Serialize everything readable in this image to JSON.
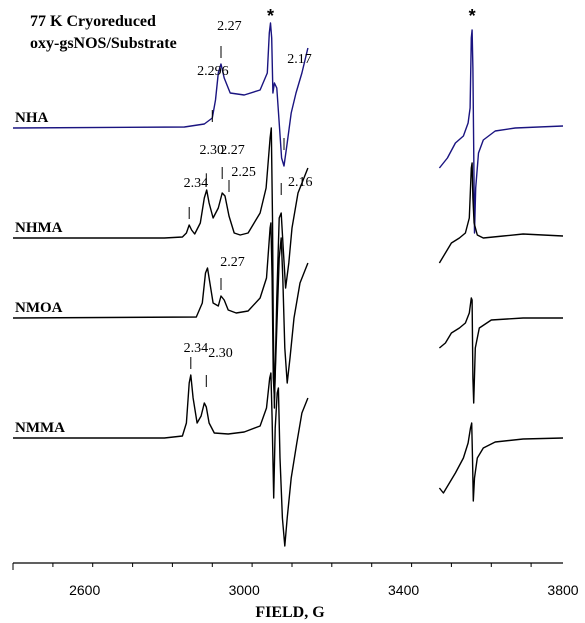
{
  "chart_data": {
    "type": "line",
    "title_lines": [
      "77 K Cryoreduced",
      "oxy-gsNOS/Substrate"
    ],
    "xlabel": "FIELD, G",
    "ylabel": "",
    "xlim": [
      2420,
      3800
    ],
    "xticks": [
      2600,
      3000,
      3400,
      3800
    ],
    "grid": false,
    "axis_break": [
      3160,
      3490
    ],
    "star_markers": [
      3066,
      3572
    ],
    "colors": {
      "blue": "#1a1480",
      "black": "#000000"
    },
    "series": [
      {
        "name": "NHA",
        "color": "#1a1480",
        "baseline": 128,
        "low_points": [
          [
            2420,
            0
          ],
          [
            2850,
            1
          ],
          [
            2900,
            4
          ],
          [
            2920,
            10
          ],
          [
            2928,
            28
          ],
          [
            2935,
            55
          ],
          [
            2942,
            64
          ],
          [
            2950,
            50
          ],
          [
            2965,
            35
          ],
          [
            3000,
            33
          ],
          [
            3040,
            38
          ],
          [
            3058,
            55
          ],
          [
            3063,
            95
          ],
          [
            3066,
            105
          ],
          [
            3069,
            90
          ],
          [
            3072,
            35
          ],
          [
            3076,
            45
          ],
          [
            3082,
            40
          ],
          [
            3088,
            5
          ],
          [
            3094,
            -30
          ],
          [
            3100,
            -38
          ],
          [
            3108,
            -15
          ],
          [
            3118,
            15
          ],
          [
            3130,
            35
          ],
          [
            3145,
            55
          ],
          [
            3160,
            80
          ]
        ],
        "high_points": [
          [
            3490,
            -40
          ],
          [
            3510,
            -30
          ],
          [
            3530,
            -15
          ],
          [
            3550,
            -8
          ],
          [
            3562,
            5
          ],
          [
            3567,
            20
          ],
          [
            3570,
            90
          ],
          [
            3572,
            98
          ],
          [
            3574,
            60
          ],
          [
            3576,
            -20
          ],
          [
            3578,
            -105
          ],
          [
            3581,
            -60
          ],
          [
            3588,
            -25
          ],
          [
            3600,
            -12
          ],
          [
            3630,
            -3
          ],
          [
            3680,
            0
          ],
          [
            3800,
            2
          ]
        ]
      },
      {
        "name": "NHMA",
        "color": "#000000",
        "baseline": 238,
        "low_points": [
          [
            2420,
            0
          ],
          [
            2800,
            0
          ],
          [
            2845,
            1
          ],
          [
            2855,
            5
          ],
          [
            2862,
            13
          ],
          [
            2868,
            8
          ],
          [
            2876,
            4
          ],
          [
            2890,
            15
          ],
          [
            2900,
            40
          ],
          [
            2906,
            48
          ],
          [
            2912,
            35
          ],
          [
            2922,
            20
          ],
          [
            2935,
            30
          ],
          [
            2945,
            45
          ],
          [
            2952,
            42
          ],
          [
            2962,
            22
          ],
          [
            2975,
            5
          ],
          [
            2990,
            3
          ],
          [
            3010,
            5
          ],
          [
            3040,
            25
          ],
          [
            3055,
            50
          ],
          [
            3065,
            100
          ],
          [
            3068,
            110
          ],
          [
            3071,
            20
          ],
          [
            3073,
            -90
          ],
          [
            3076,
            -170
          ],
          [
            3082,
            -60
          ],
          [
            3088,
            20
          ],
          [
            3093,
            25
          ],
          [
            3098,
            -10
          ],
          [
            3104,
            -50
          ],
          [
            3112,
            -25
          ],
          [
            3120,
            10
          ],
          [
            3135,
            45
          ],
          [
            3160,
            70
          ]
        ],
        "high_points": [
          [
            3490,
            -25
          ],
          [
            3505,
            -15
          ],
          [
            3520,
            -5
          ],
          [
            3540,
            0
          ],
          [
            3555,
            5
          ],
          [
            3565,
            20
          ],
          [
            3570,
            70
          ],
          [
            3572,
            75
          ],
          [
            3574,
            40
          ],
          [
            3577,
            15
          ],
          [
            3585,
            3
          ],
          [
            3600,
            0
          ],
          [
            3650,
            2
          ],
          [
            3700,
            4
          ],
          [
            3800,
            2
          ]
        ]
      },
      {
        "name": "NMOA",
        "color": "#000000",
        "baseline": 318,
        "low_points": [
          [
            2420,
            0
          ],
          [
            2880,
            1
          ],
          [
            2895,
            15
          ],
          [
            2903,
            45
          ],
          [
            2908,
            50
          ],
          [
            2914,
            35
          ],
          [
            2922,
            15
          ],
          [
            2935,
            12
          ],
          [
            2942,
            22
          ],
          [
            2950,
            18
          ],
          [
            2960,
            8
          ],
          [
            2980,
            5
          ],
          [
            3010,
            7
          ],
          [
            3040,
            20
          ],
          [
            3056,
            40
          ],
          [
            3065,
            90
          ],
          [
            3067,
            95
          ],
          [
            3070,
            40
          ],
          [
            3073,
            -60
          ],
          [
            3076,
            -80
          ],
          [
            3082,
            -10
          ],
          [
            3088,
            60
          ],
          [
            3093,
            80
          ],
          [
            3097,
            40
          ],
          [
            3102,
            -30
          ],
          [
            3108,
            -65
          ],
          [
            3115,
            -40
          ],
          [
            3125,
            0
          ],
          [
            3140,
            35
          ],
          [
            3160,
            55
          ]
        ],
        "high_points": [
          [
            3490,
            -30
          ],
          [
            3505,
            -25
          ],
          [
            3520,
            -15
          ],
          [
            3540,
            -10
          ],
          [
            3555,
            -5
          ],
          [
            3565,
            5
          ],
          [
            3570,
            20
          ],
          [
            3572,
            18
          ],
          [
            3574,
            -60
          ],
          [
            3576,
            -85
          ],
          [
            3580,
            -30
          ],
          [
            3590,
            -10
          ],
          [
            3620,
            -2
          ],
          [
            3700,
            0
          ],
          [
            3800,
            0
          ]
        ]
      },
      {
        "name": "NMMA",
        "color": "#000000",
        "baseline": 438,
        "low_points": [
          [
            2420,
            0
          ],
          [
            2800,
            0
          ],
          [
            2845,
            2
          ],
          [
            2855,
            15
          ],
          [
            2862,
            55
          ],
          [
            2866,
            63
          ],
          [
            2872,
            40
          ],
          [
            2882,
            15
          ],
          [
            2892,
            22
          ],
          [
            2900,
            35
          ],
          [
            2905,
            31
          ],
          [
            2912,
            15
          ],
          [
            2925,
            5
          ],
          [
            2960,
            4
          ],
          [
            3000,
            6
          ],
          [
            3040,
            12
          ],
          [
            3056,
            30
          ],
          [
            3064,
            60
          ],
          [
            3067,
            65
          ],
          [
            3070,
            20
          ],
          [
            3074,
            -60
          ],
          [
            3078,
            10
          ],
          [
            3083,
            45
          ],
          [
            3086,
            50
          ],
          [
            3090,
            -20
          ],
          [
            3096,
            -80
          ],
          [
            3102,
            -108
          ],
          [
            3108,
            -80
          ],
          [
            3118,
            -40
          ],
          [
            3132,
            -5
          ],
          [
            3145,
            25
          ],
          [
            3160,
            40
          ]
        ],
        "high_points": [
          [
            3490,
            -50
          ],
          [
            3500,
            -55
          ],
          [
            3515,
            -45
          ],
          [
            3530,
            -35
          ],
          [
            3550,
            -20
          ],
          [
            3562,
            -5
          ],
          [
            3568,
            10
          ],
          [
            3571,
            15
          ],
          [
            3573,
            -20
          ],
          [
            3575,
            -63
          ],
          [
            3578,
            -40
          ],
          [
            3585,
            -20
          ],
          [
            3600,
            -10
          ],
          [
            3630,
            -4
          ],
          [
            3700,
            -1
          ],
          [
            3800,
            0
          ]
        ]
      }
    ],
    "g_annotations": [
      {
        "text": "2.27",
        "field": 2942,
        "series": "NHA"
      },
      {
        "text": "2.296",
        "field": 2920,
        "series": "NHA"
      },
      {
        "text": "2.17",
        "field": 3100,
        "series": "NHA"
      },
      {
        "text": "2.30",
        "field": 2905,
        "series": "NHMA"
      },
      {
        "text": "2.27",
        "field": 2945,
        "series": "NHMA"
      },
      {
        "text": "2.34",
        "field": 2862,
        "series": "NHMA"
      },
      {
        "text": "2.25",
        "field": 2962,
        "series": "NHMA"
      },
      {
        "text": "2.16",
        "field": 3093,
        "series": "NHMA"
      },
      {
        "text": "2.27",
        "field": 2942,
        "series": "NMOA"
      },
      {
        "text": "2.34",
        "field": 2866,
        "series": "NMMA"
      },
      {
        "text": "2.30",
        "field": 2905,
        "series": "NMMA"
      }
    ],
    "star_label": "*"
  }
}
